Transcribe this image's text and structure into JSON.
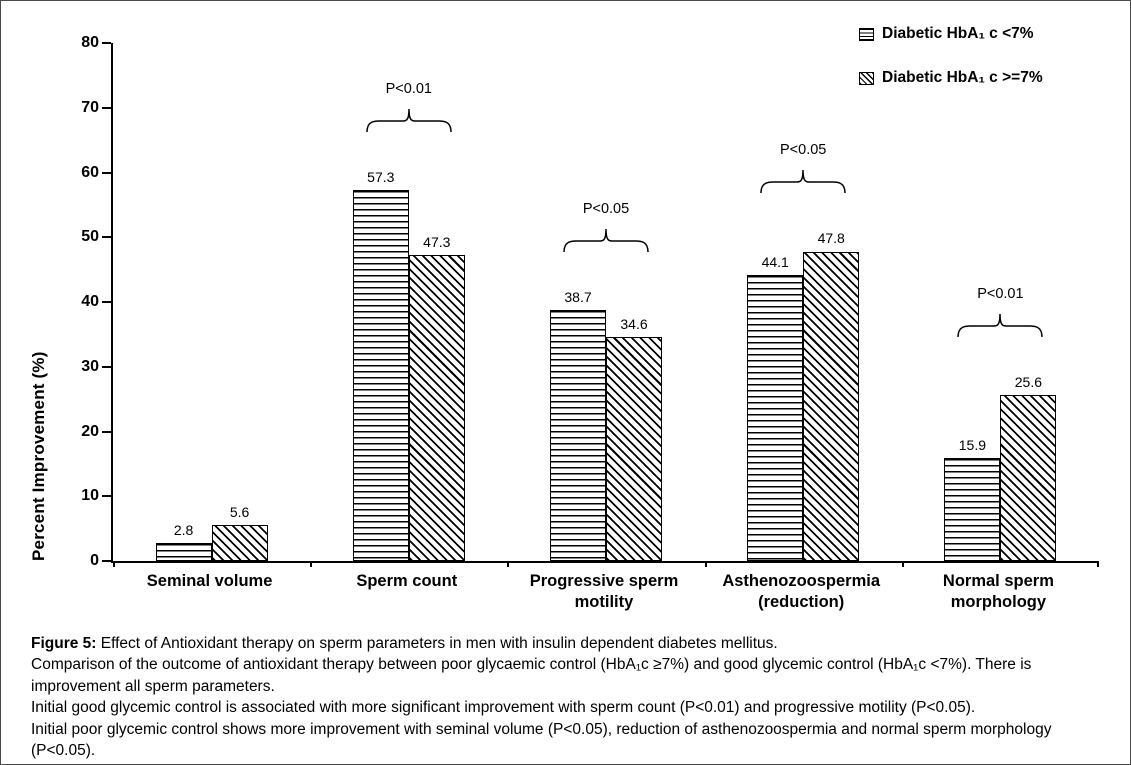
{
  "chart_data": {
    "type": "bar",
    "title": "",
    "ylabel": "Percent Improvement (%)",
    "xlabel": "",
    "ylim": [
      0,
      80
    ],
    "yticks": [
      0,
      10,
      20,
      30,
      40,
      50,
      60,
      70,
      80
    ],
    "grid": false,
    "legend_position": "top-right",
    "categories": [
      "Seminal volume",
      "Sperm count",
      "Progressive sperm motility",
      "Asthenozoospermia (reduction)",
      "Normal sperm morphology"
    ],
    "series": [
      {
        "name": "Diabetic HbA₁ c <7%",
        "pattern": "horizontal-lines",
        "values": [
          2.8,
          57.3,
          38.7,
          44.1,
          15.9
        ]
      },
      {
        "name": "Diabetic HbA₁ c >=7%",
        "pattern": "diagonal-lines",
        "values": [
          5.6,
          47.3,
          34.6,
          47.8,
          25.6
        ]
      }
    ],
    "annotations": [
      {
        "category_index": 1,
        "label": "P<0.01"
      },
      {
        "category_index": 2,
        "label": "P<0.05"
      },
      {
        "category_index": 3,
        "label": "P<0.05"
      },
      {
        "category_index": 4,
        "label": "P<0.01"
      }
    ]
  },
  "caption": {
    "heading_bold": "Figure 5:",
    "heading_rest": " Effect of Antioxidant therapy on sperm parameters in men with insulin dependent diabetes mellitus.",
    "lines": [
      "Comparison of the outcome of antioxidant therapy between poor glycaemic control (HbA₁c ≥7%) and good glycemic control (HbA₁c <7%). There is improvement all sperm parameters.",
      "Initial good glycemic control is associated with more significant improvement with sperm count (P<0.01) and progressive motility (P<0.05).",
      "Initial poor glycemic control shows more improvement with seminal volume (P<0.05), reduction of asthenozoospermia and normal sperm morphology (P<0.05)."
    ]
  }
}
